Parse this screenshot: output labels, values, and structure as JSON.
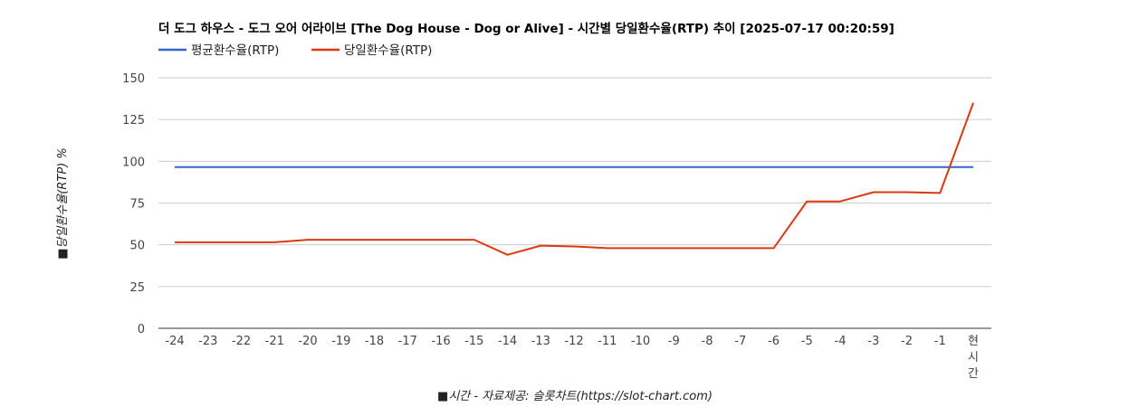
{
  "chart_data": {
    "type": "line",
    "title": "더 도그 하우스 - 도그 오어 어라이브 [The Dog House - Dog or Alive] - 시간별 당일환수율(RTP) 추이 [2025-07-17 00:20:59]",
    "xlabel": "■시간 - 자료제공: 슬롯차트(https://slot-chart.com)",
    "ylabel": "■당일환수율(RTP) %",
    "ylim": [
      0,
      150
    ],
    "yticks": [
      0,
      25,
      50,
      75,
      100,
      125,
      150
    ],
    "categories": [
      "-24",
      "-23",
      "-22",
      "-21",
      "-20",
      "-19",
      "-18",
      "-17",
      "-16",
      "-15",
      "-14",
      "-13",
      "-12",
      "-11",
      "-10",
      "-9",
      "-8",
      "-7",
      "-6",
      "-5",
      "-4",
      "-3",
      "-2",
      "-1",
      "현시간"
    ],
    "grid": true,
    "legend": "top-left",
    "series": [
      {
        "name": "평균환수율(RTP)",
        "color": "#3366cc",
        "values": [
          96.5,
          96.5,
          96.5,
          96.5,
          96.5,
          96.5,
          96.5,
          96.5,
          96.5,
          96.5,
          96.5,
          96.5,
          96.5,
          96.5,
          96.5,
          96.5,
          96.5,
          96.5,
          96.5,
          96.5,
          96.5,
          96.5,
          96.5,
          96.5,
          96.5
        ]
      },
      {
        "name": "당일환수율(RTP)",
        "color": "#dc3912",
        "values": [
          51.5,
          51.5,
          51.5,
          51.5,
          53,
          53,
          53,
          53,
          53,
          53,
          44,
          49.5,
          49,
          48,
          48,
          48,
          48,
          48,
          48,
          76,
          76,
          81.5,
          81.5,
          81,
          135
        ]
      }
    ]
  }
}
